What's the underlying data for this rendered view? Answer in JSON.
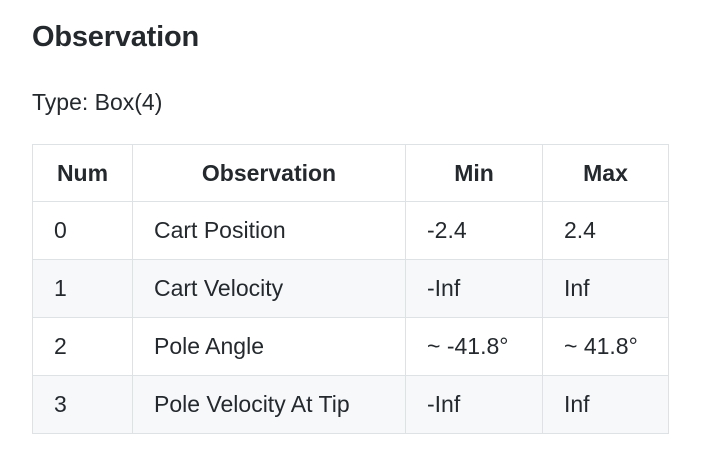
{
  "heading": "Observation",
  "type_line": "Type: Box(4)",
  "table": {
    "headers": [
      "Num",
      "Observation",
      "Min",
      "Max"
    ],
    "rows": [
      [
        "0",
        "Cart Position",
        "-2.4",
        "2.4"
      ],
      [
        "1",
        "Cart Velocity",
        "-Inf",
        "Inf"
      ],
      [
        "2",
        "Pole Angle",
        "~ -41.8°",
        "~ 41.8°"
      ],
      [
        "3",
        "Pole Velocity At Tip",
        "-Inf",
        "Inf"
      ]
    ]
  }
}
